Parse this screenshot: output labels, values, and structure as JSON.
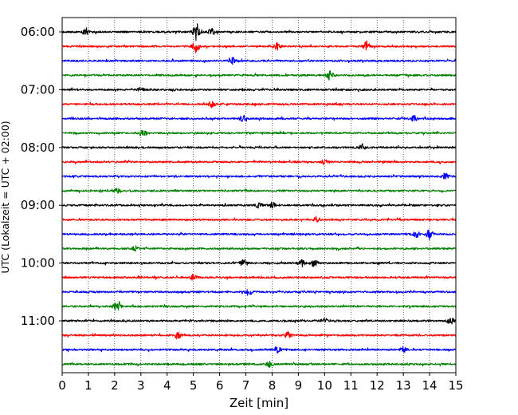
{
  "chart_data": {
    "type": "line",
    "subtype": "helicorder-seismogram",
    "xlabel": "Zeit  [min]",
    "ylabel": "UTC (Lokalzeit = UTC + 02:00)",
    "x_ticks": [
      0,
      1,
      2,
      3,
      4,
      5,
      6,
      7,
      8,
      9,
      10,
      11,
      12,
      13,
      14,
      15
    ],
    "xlim": [
      0,
      15
    ],
    "y_tick_labels": [
      "06:00",
      "07:00",
      "08:00",
      "09:00",
      "10:00",
      "11:00"
    ],
    "grid": "vertical dotted lines at each minute",
    "legend": "none",
    "trace_interval_minutes": 15,
    "trace_color_cycle": [
      "#000000",
      "#ff0000",
      "#0000ff",
      "#008000"
    ],
    "traces": [
      {
        "start": "06:00",
        "color": "#000000",
        "events": [
          {
            "minute": 5.1,
            "amplitude": 1.0
          },
          {
            "minute": 5.7,
            "amplitude": 0.3
          },
          {
            "minute": 0.9,
            "amplitude": 0.25
          }
        ]
      },
      {
        "start": "06:15",
        "color": "#ff0000",
        "events": [
          {
            "minute": 5.1,
            "amplitude": 0.6
          },
          {
            "minute": 8.2,
            "amplitude": 0.35
          },
          {
            "minute": 11.6,
            "amplitude": 0.45
          }
        ]
      },
      {
        "start": "06:30",
        "color": "#0000ff",
        "events": [
          {
            "minute": 6.5,
            "amplitude": 0.3
          }
        ]
      },
      {
        "start": "06:45",
        "color": "#008000",
        "events": [
          {
            "minute": 10.2,
            "amplitude": 0.45
          }
        ]
      },
      {
        "start": "07:00",
        "color": "#000000",
        "events": [
          {
            "minute": 3.0,
            "amplitude": 0.2
          }
        ]
      },
      {
        "start": "07:15",
        "color": "#ff0000",
        "events": [
          {
            "minute": 5.7,
            "amplitude": 0.3
          }
        ]
      },
      {
        "start": "07:30",
        "color": "#0000ff",
        "events": [
          {
            "minute": 6.9,
            "amplitude": 0.3
          },
          {
            "minute": 13.4,
            "amplitude": 0.25
          }
        ]
      },
      {
        "start": "07:45",
        "color": "#008000",
        "events": [
          {
            "minute": 3.1,
            "amplitude": 0.3
          }
        ]
      },
      {
        "start": "08:00",
        "color": "#000000",
        "events": [
          {
            "minute": 11.4,
            "amplitude": 0.35
          }
        ]
      },
      {
        "start": "08:15",
        "color": "#ff0000",
        "events": [
          {
            "minute": 10.0,
            "amplitude": 0.25
          }
        ]
      },
      {
        "start": "08:30",
        "color": "#0000ff",
        "events": [
          {
            "minute": 14.6,
            "amplitude": 0.3
          }
        ]
      },
      {
        "start": "08:45",
        "color": "#008000",
        "events": [
          {
            "minute": 2.1,
            "amplitude": 0.2
          }
        ]
      },
      {
        "start": "09:00",
        "color": "#000000",
        "events": [
          {
            "minute": 8.0,
            "amplitude": 0.3
          },
          {
            "minute": 7.5,
            "amplitude": 0.25
          }
        ]
      },
      {
        "start": "09:15",
        "color": "#ff0000",
        "events": [
          {
            "minute": 9.7,
            "amplitude": 0.3
          }
        ]
      },
      {
        "start": "09:30",
        "color": "#0000ff",
        "events": [
          {
            "minute": 14.0,
            "amplitude": 0.4
          },
          {
            "minute": 13.5,
            "amplitude": 0.3
          }
        ]
      },
      {
        "start": "09:45",
        "color": "#008000",
        "events": [
          {
            "minute": 2.8,
            "amplitude": 0.25
          }
        ]
      },
      {
        "start": "10:00",
        "color": "#000000",
        "events": [
          {
            "minute": 9.1,
            "amplitude": 0.4
          },
          {
            "minute": 9.6,
            "amplitude": 0.4
          },
          {
            "minute": 6.9,
            "amplitude": 0.3
          }
        ]
      },
      {
        "start": "10:15",
        "color": "#ff0000",
        "events": [
          {
            "minute": 5.0,
            "amplitude": 0.25
          }
        ]
      },
      {
        "start": "10:30",
        "color": "#0000ff",
        "events": [
          {
            "minute": 7.1,
            "amplitude": 0.3
          }
        ]
      },
      {
        "start": "10:45",
        "color": "#008000",
        "events": [
          {
            "minute": 2.1,
            "amplitude": 0.7
          }
        ]
      },
      {
        "start": "11:00",
        "color": "#000000",
        "events": [
          {
            "minute": 10.0,
            "amplitude": 0.25
          },
          {
            "minute": 14.8,
            "amplitude": 0.3
          }
        ]
      },
      {
        "start": "11:15",
        "color": "#ff0000",
        "events": [
          {
            "minute": 4.4,
            "amplitude": 0.35
          },
          {
            "minute": 8.6,
            "amplitude": 0.25
          }
        ]
      },
      {
        "start": "11:30",
        "color": "#0000ff",
        "events": [
          {
            "minute": 8.2,
            "amplitude": 0.3
          },
          {
            "minute": 13.0,
            "amplitude": 0.25
          }
        ]
      },
      {
        "start": "11:45",
        "color": "#008000",
        "events": [
          {
            "minute": 7.9,
            "amplitude": 0.3
          }
        ]
      }
    ]
  }
}
